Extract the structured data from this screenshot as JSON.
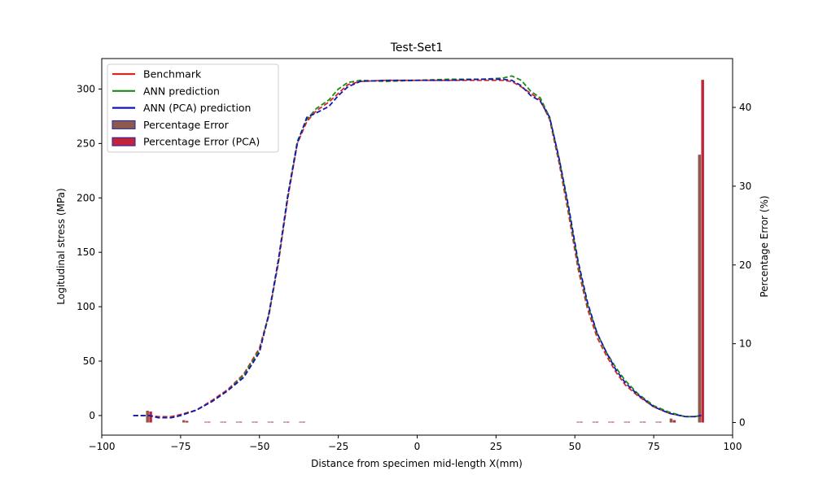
{
  "chart_data": {
    "type": "line",
    "title": "Test-Set1",
    "xlabel": "Distance from specimen mid-length X(mm)",
    "ylabel": "Logitudinal stress (MPa)",
    "y2label": "Percentage Error (%)",
    "xlim": [
      -100,
      100
    ],
    "ylim": [
      -18,
      328
    ],
    "y2lim": [
      -1.6,
      46.2
    ],
    "xticks": [
      -100,
      -75,
      -50,
      -25,
      0,
      25,
      50,
      75,
      100
    ],
    "yticks": [
      0,
      50,
      100,
      150,
      200,
      250,
      300
    ],
    "y2ticks": [
      0,
      10,
      20,
      30,
      40
    ],
    "grid": false,
    "legend_position": "upper-left",
    "colors": {
      "benchmark": "#d62728",
      "ann": "#1a8a1a",
      "ann_pca": "#1515b5",
      "error": "#a0522d",
      "error_pca": "#c8102e"
    },
    "series": [
      {
        "name": "Benchmark",
        "axis": "left",
        "color": "#d62728",
        "x": [
          -90,
          -85,
          -82,
          -78,
          -75,
          -70,
          -65,
          -60,
          -55,
          -50,
          -47,
          -44,
          -41,
          -38,
          -35,
          -32,
          -28,
          -25,
          -22,
          -18,
          -10,
          0,
          10,
          20,
          27,
          30,
          33,
          36,
          39,
          42,
          45,
          48,
          51,
          54,
          57,
          60,
          63,
          66,
          70,
          75,
          80,
          85,
          88,
          90
        ],
        "y": [
          0,
          0,
          -1,
          -1,
          1,
          5,
          14,
          24,
          38,
          62,
          93,
          140,
          200,
          250,
          270,
          280,
          288,
          296,
          304,
          307,
          308,
          308,
          308,
          308,
          308,
          307,
          302,
          296,
          290,
          272,
          232,
          185,
          135,
          98,
          72,
          55,
          40,
          28,
          18,
          8,
          2,
          -1,
          -1,
          0
        ]
      },
      {
        "name": "ANN prediction",
        "axis": "left",
        "color": "#1a8a1a",
        "x": [
          -90,
          -85,
          -82,
          -78,
          -75,
          -70,
          -65,
          -60,
          -55,
          -50,
          -47,
          -44,
          -41,
          -38,
          -35,
          -32,
          -28,
          -25,
          -22,
          -18,
          -10,
          0,
          10,
          20,
          27,
          30,
          33,
          36,
          39,
          42,
          45,
          48,
          51,
          54,
          57,
          60,
          63,
          66,
          70,
          75,
          80,
          85,
          88,
          90
        ],
        "y": [
          0,
          0,
          -2,
          -2,
          0,
          5,
          13,
          23,
          37,
          60,
          92,
          142,
          203,
          252,
          272,
          282,
          290,
          300,
          306,
          308,
          307,
          308,
          309,
          309,
          310,
          312,
          308,
          298,
          292,
          274,
          236,
          190,
          140,
          102,
          76,
          58,
          44,
          32,
          20,
          9,
          3,
          -1,
          -1,
          0
        ]
      },
      {
        "name": "ANN (PCA) prediction",
        "axis": "left",
        "color": "#1515b5",
        "x": [
          -90,
          -85,
          -82,
          -78,
          -75,
          -70,
          -65,
          -60,
          -55,
          -50,
          -47,
          -44,
          -41,
          -38,
          -35,
          -32,
          -28,
          -25,
          -22,
          -18,
          -10,
          0,
          10,
          20,
          27,
          30,
          33,
          36,
          39,
          42,
          45,
          48,
          51,
          54,
          57,
          60,
          63,
          66,
          70,
          75,
          80,
          85,
          88,
          90
        ],
        "y": [
          0,
          0,
          -2,
          -2,
          0,
          5,
          13,
          23,
          35,
          58,
          94,
          143,
          202,
          250,
          274,
          278,
          284,
          294,
          302,
          307,
          308,
          308,
          308,
          309,
          309,
          308,
          303,
          294,
          289,
          274,
          236,
          192,
          142,
          104,
          76,
          58,
          42,
          30,
          19,
          8,
          2,
          -1,
          -1,
          0
        ]
      }
    ],
    "bars": [
      {
        "name": "Percentage Error",
        "axis": "right",
        "fill": "#8b5a4a",
        "edge": "#2020b0",
        "bar_width": 0.9,
        "x": [
          -85.5,
          -74,
          -67,
          -62,
          -57,
          -52,
          -47,
          -42,
          -37,
          51,
          56,
          61,
          66,
          71,
          76,
          80.5,
          89.5
        ],
        "y": [
          1.5,
          0.3,
          0.1,
          0.1,
          0.1,
          0.1,
          0.1,
          0.1,
          0.1,
          0.1,
          0.1,
          0.1,
          0.1,
          0.1,
          0.1,
          0.5,
          34.0
        ]
      },
      {
        "name": "Percentage Error (PCA)",
        "axis": "right",
        "fill": "#c0233a",
        "edge": "#2020b0",
        "bar_width": 0.9,
        "x": [
          -84.5,
          -73,
          -66,
          -61,
          -56,
          -51,
          -46,
          -41,
          -36,
          52,
          57,
          62,
          67,
          72,
          77,
          81.5,
          90.5
        ],
        "y": [
          1.4,
          0.2,
          0.1,
          0.1,
          0.1,
          0.1,
          0.1,
          0.1,
          0.1,
          0.1,
          0.1,
          0.1,
          0.1,
          0.1,
          0.1,
          0.3,
          43.5
        ]
      }
    ],
    "legend": [
      {
        "label": "Benchmark",
        "kind": "line",
        "color": "#d62728"
      },
      {
        "label": "ANN prediction",
        "kind": "line",
        "color": "#1a8a1a"
      },
      {
        "label": "ANN (PCA) prediction",
        "kind": "line",
        "color": "#1515b5"
      },
      {
        "label": "Percentage Error",
        "kind": "patch",
        "color": "#8b5a4a",
        "edge": "#2020b0"
      },
      {
        "label": "Percentage Error (PCA)",
        "kind": "patch",
        "color": "#c0233a",
        "edge": "#2020b0"
      }
    ]
  }
}
